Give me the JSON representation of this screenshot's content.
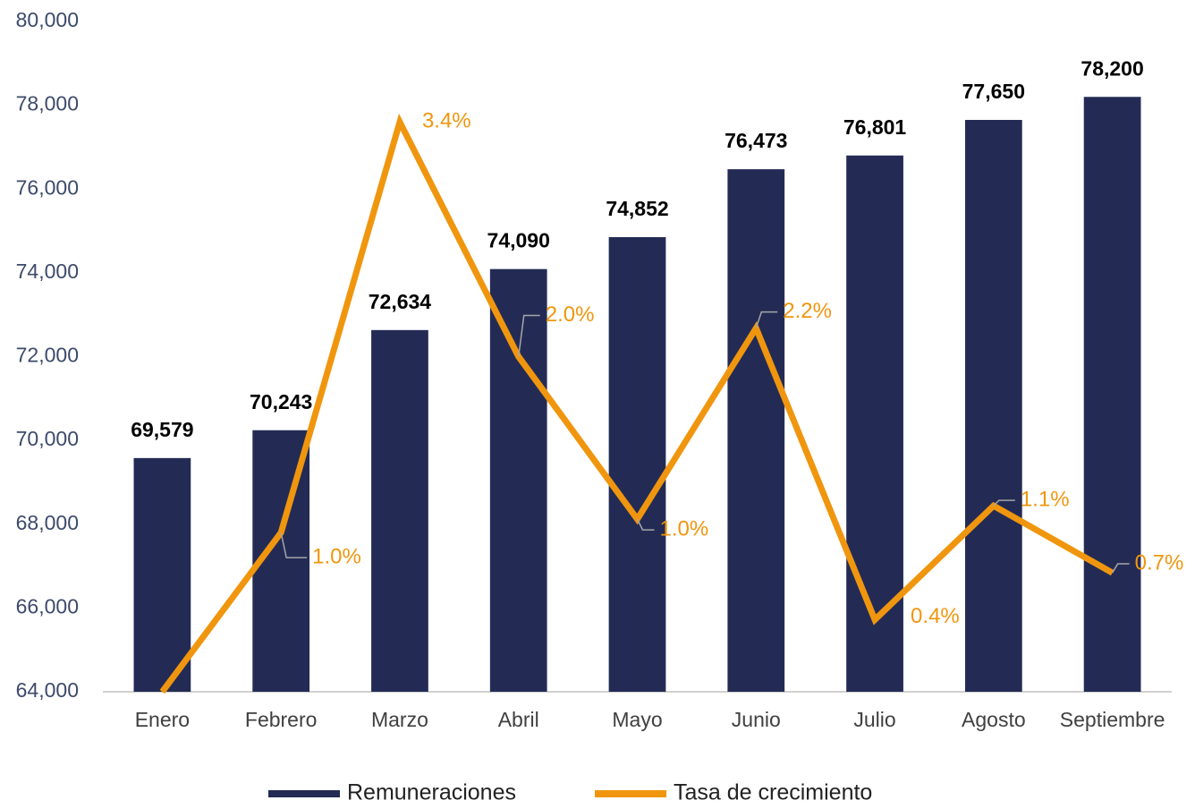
{
  "chart_data": {
    "type": "bar",
    "categories": [
      "Enero",
      "Febrero",
      "Marzo",
      "Abril",
      "Mayo",
      "Junio",
      "Julio",
      "Agosto",
      "Septiembre"
    ],
    "series": [
      {
        "name": "Remuneraciones",
        "color": "#232b55",
        "type": "bar",
        "values": [
          69579,
          70243,
          72634,
          74090,
          74852,
          76473,
          76801,
          77650,
          78200
        ],
        "value_labels": [
          "69,579",
          "70,243",
          "72,634",
          "74,090",
          "74,852",
          "76,473",
          "76,801",
          "77,650",
          "78,200"
        ]
      },
      {
        "name": "Tasa de crecimiento",
        "color": "#f0960e",
        "type": "line",
        "axis": "y2",
        "values": [
          0,
          0.95,
          3.4,
          2.0,
          1.03,
          2.17,
          0.43,
          1.11,
          0.71
        ],
        "value_labels": [
          null,
          "1.0%",
          "3.4%",
          "2.0%",
          "1.0%",
          "2.2%",
          "0.4%",
          "1.1%",
          "0.7%"
        ]
      }
    ],
    "ylim": [
      64000,
      80000
    ],
    "yticks": [
      {
        "value": 64000,
        "label": "64,000"
      },
      {
        "value": 66000,
        "label": "66,000"
      },
      {
        "value": 68000,
        "label": "68,000"
      },
      {
        "value": 70000,
        "label": "70,000"
      },
      {
        "value": 72000,
        "label": "72,000"
      },
      {
        "value": 74000,
        "label": "74,000"
      },
      {
        "value": 76000,
        "label": "76,000"
      },
      {
        "value": 78000,
        "label": "78,000"
      },
      {
        "value": 80000,
        "label": "80,000"
      }
    ],
    "y2lim": [
      0,
      4
    ],
    "legend": "bottom"
  }
}
